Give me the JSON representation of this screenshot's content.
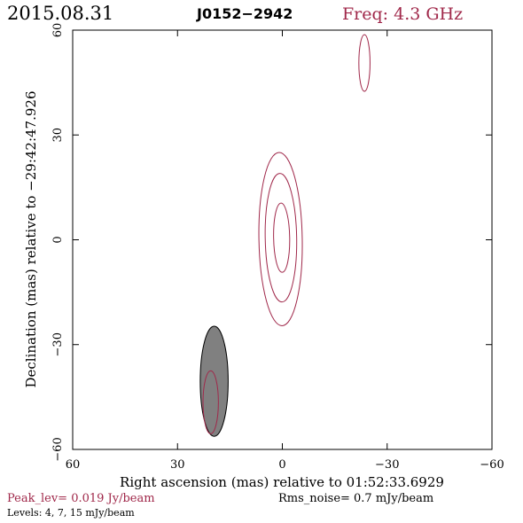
{
  "header": {
    "date": "2015.08.31",
    "source": "J0152−2942",
    "freq": "Freq: 4.3 GHz"
  },
  "footer": {
    "peak": "Peak_lev=  0.019 Jy/beam",
    "rms": "Rms_noise=   0.7 mJy/beam",
    "levels": "Levels:   4,   7,  15 mJy/beam"
  },
  "colors": {
    "contour": "#a0284a",
    "axes": "#000000",
    "beam_fill": "#808080"
  },
  "chart_data": {
    "type": "contour",
    "title": "J0152−2942",
    "xlabel": "Right ascension (mas) relative to 01:52:33.6929",
    "ylabel": "Declination (mas) relative to −29:42:47.926",
    "xlim": [
      60,
      -60
    ],
    "ylim": [
      -60,
      60
    ],
    "x_ticks": [
      60,
      30,
      0,
      -30,
      -60
    ],
    "y_ticks": [
      -60,
      -30,
      0,
      30,
      60
    ],
    "x_tick_labels": [
      "60",
      "30",
      "0",
      "−30",
      "−60"
    ],
    "y_tick_labels": [
      "−60",
      "−30",
      "0",
      "30",
      "60"
    ],
    "contour_levels_mJy": [
      4,
      7,
      15
    ],
    "contours": [
      {
        "component": "core",
        "level": 4,
        "x": 0.5,
        "y": 0.2,
        "a": 6.2,
        "b": 24.8,
        "pa": -1
      },
      {
        "component": "core",
        "level": 7,
        "x": 0.4,
        "y": 0.6,
        "a": 4.5,
        "b": 18.4,
        "pa": -1
      },
      {
        "component": "core",
        "level": 15,
        "x": 0.2,
        "y": 0.6,
        "a": 2.3,
        "b": 9.9,
        "pa": -1
      },
      {
        "component": "jet",
        "level": 4,
        "x": -23.5,
        "y": 50.6,
        "a": 1.6,
        "b": 8.1,
        "pa": 0
      },
      {
        "component": "beam_overlay",
        "level": 4,
        "x": 20.5,
        "y": -46.5,
        "a": 2.2,
        "b": 9.0,
        "pa": 0
      }
    ],
    "beam": {
      "x": 19.5,
      "y": -40.5,
      "major": 31.5,
      "minor": 8.0,
      "pa": 0
    }
  }
}
